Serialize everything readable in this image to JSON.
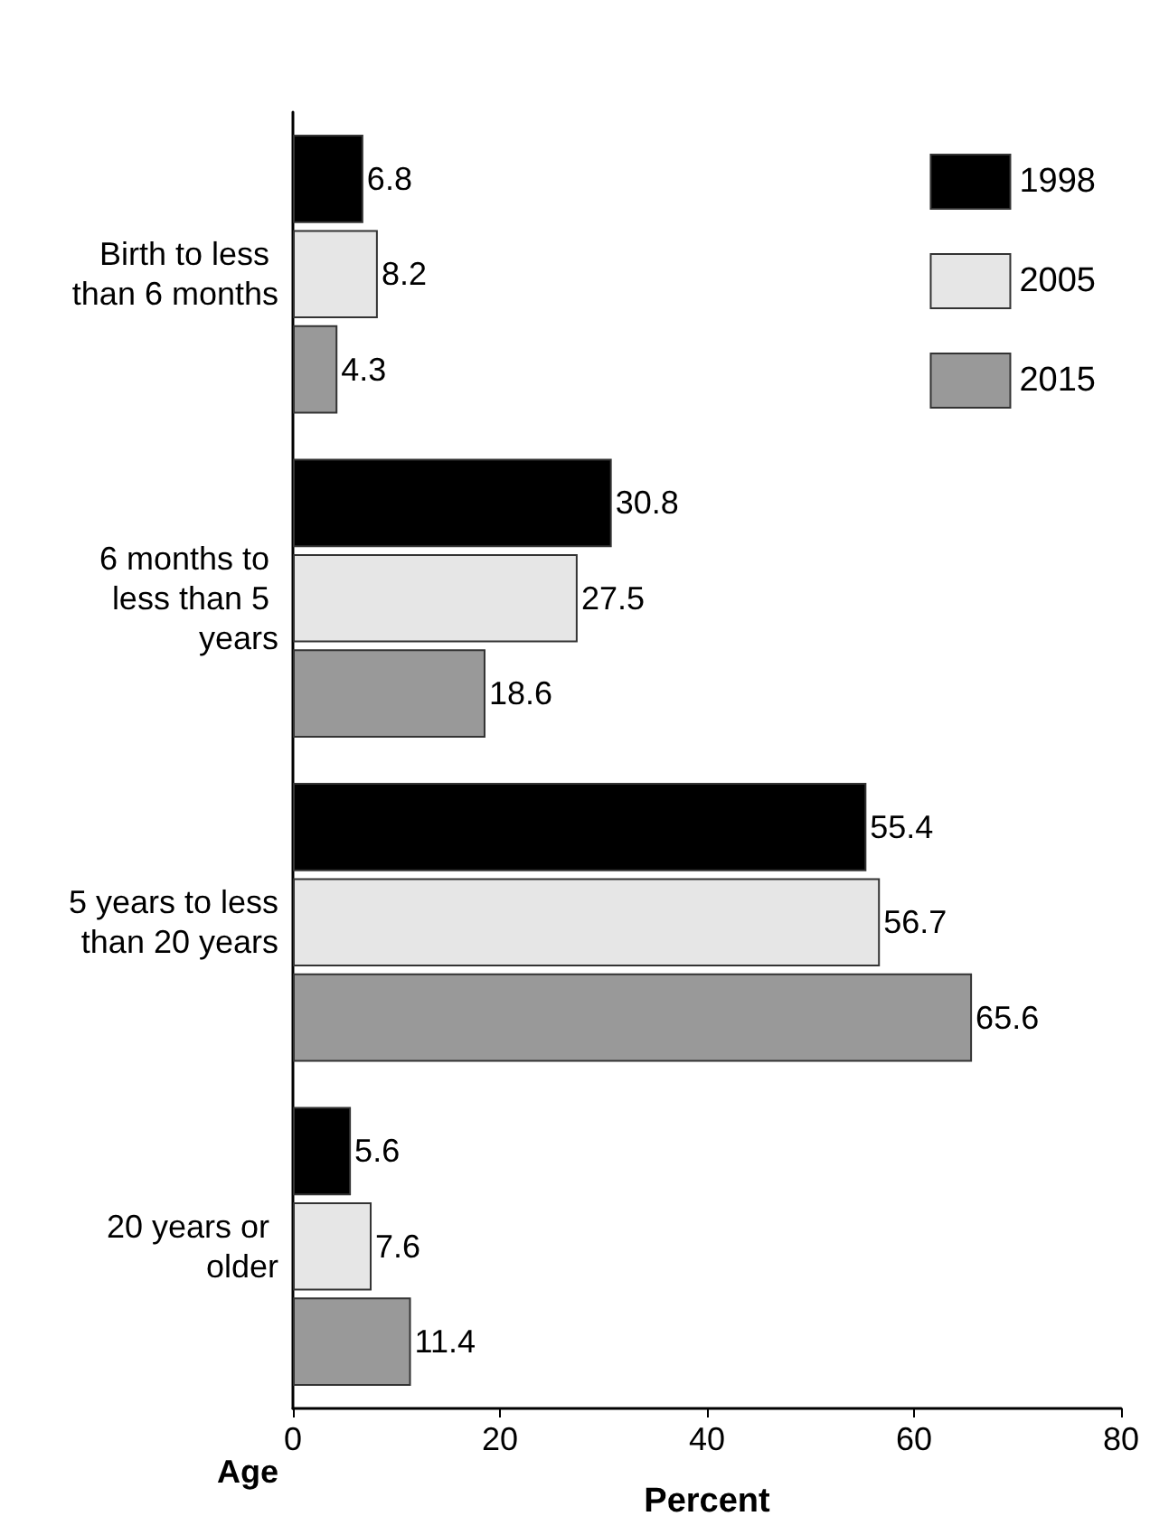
{
  "chart_data": {
    "type": "bar",
    "orientation": "horizontal",
    "ylabel": "Age",
    "xlabel": "Percent",
    "categories": [
      "Birth to less than 6 months",
      "6 months to less than 5 years",
      "5 years to less than 20 years",
      "20 years or older"
    ],
    "series": [
      {
        "name": "1998",
        "color": "#000000",
        "values": [
          6.8,
          30.8,
          55.4,
          5.6
        ]
      },
      {
        "name": "2005",
        "color": "#e6e6e6",
        "values": [
          8.2,
          27.5,
          56.7,
          7.6
        ]
      },
      {
        "name": "2015",
        "color": "#999999",
        "values": [
          4.3,
          18.6,
          65.6,
          11.4
        ]
      }
    ],
    "xlim": [
      0,
      80
    ],
    "xticks": [
      0,
      20,
      40,
      60,
      80
    ],
    "grid": false,
    "legend": "top right",
    "data_labels": true
  }
}
